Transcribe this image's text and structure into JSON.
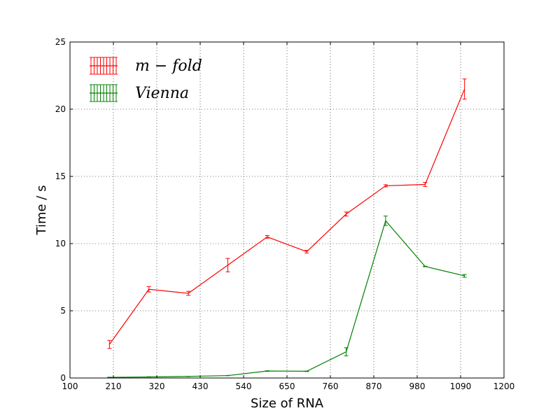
{
  "chart_data": {
    "type": "line",
    "xlabel": "Size of RNA",
    "ylabel": "Time / s",
    "xlim": [
      100,
      1200
    ],
    "ylim": [
      0,
      25
    ],
    "xticks": [
      100,
      210,
      320,
      430,
      540,
      650,
      760,
      870,
      980,
      1090,
      1200
    ],
    "yticks": [
      0,
      5,
      10,
      15,
      20,
      25
    ],
    "grid": true,
    "legend_position": "top-left",
    "series": [
      {
        "name": "m − fold",
        "color": "#ff0000",
        "x": [
          200,
          300,
          400,
          500,
          600,
          700,
          800,
          900,
          1000,
          1100
        ],
        "y": [
          2.5,
          6.6,
          6.3,
          8.4,
          10.5,
          9.4,
          12.2,
          14.3,
          14.4,
          21.5
        ],
        "err": [
          0.3,
          0.2,
          0.15,
          0.5,
          0.1,
          0.1,
          0.15,
          0.08,
          0.15,
          0.75
        ]
      },
      {
        "name": "Vienna",
        "color": "#008000",
        "x": [
          200,
          300,
          400,
          500,
          600,
          700,
          800,
          900,
          1000,
          1100
        ],
        "y": [
          0.05,
          0.08,
          0.12,
          0.18,
          0.52,
          0.5,
          1.95,
          11.7,
          8.3,
          7.6
        ],
        "err": [
          0.01,
          0.01,
          0.01,
          0.01,
          0.02,
          0.02,
          0.3,
          0.35,
          0.02,
          0.1
        ]
      }
    ]
  }
}
